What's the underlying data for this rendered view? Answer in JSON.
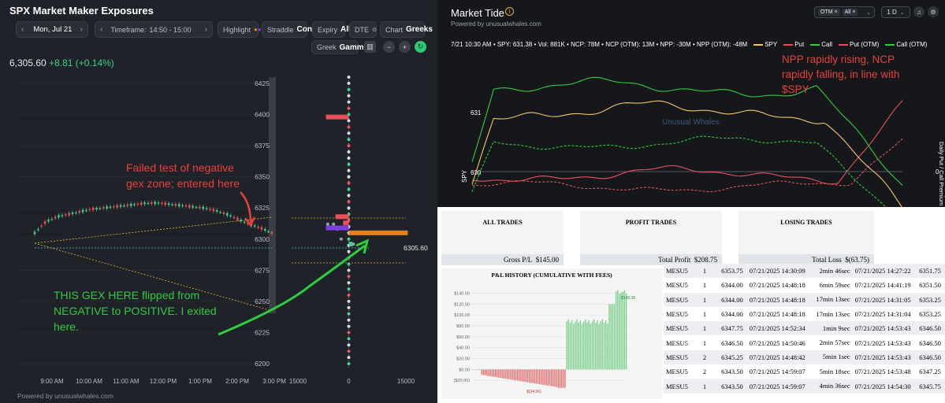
{
  "left_panel": {
    "title": "SPX Market Maker Exposures",
    "date": "Mon, Jul 21",
    "timeframe_label": "Timeframe:",
    "timeframe_value": "14:50 - 15:00",
    "highlight_label": "Highlight",
    "straddle_label": "Straddle",
    "straddle_value": "Cone",
    "expiry_label": "Expiry",
    "expiry_value": "All",
    "dte_label": "DTE",
    "chart_label": "Chart",
    "chart_value": "Greeks",
    "greek_label": "Greek",
    "greek_value": "Gamma",
    "price": "6,305.60",
    "change": "+8.81 (+0.14%)",
    "powered": "Powered by unusualwhales.com",
    "price_marker": "6305.60",
    "annotation_red": "Failed test of negative gex zone; entered here",
    "annotation_green": "THIS GEX HERE flipped from NEGATIVE to POSITIVE. I exited here.",
    "colors": {
      "up": "#3ecf8e",
      "down": "#e8505b",
      "annotation_red": "#e8413c",
      "annotation_green": "#2ecc40",
      "bar_orange": "#e67e22",
      "bar_purple": "#7b3fe4"
    }
  },
  "left_chart": {
    "type": "line",
    "x_ticks": [
      "9:00 AM",
      "10:00 AM",
      "11:00 AM",
      "12:00 PM",
      "1:00 PM",
      "2:00 PM",
      "3:00 PM"
    ],
    "y_ticks": [
      6425,
      6400,
      6375,
      6350,
      6325,
      6300,
      6275,
      6250,
      6225,
      6200
    ],
    "ylim": [
      6195,
      6430
    ],
    "price_points": [
      6305,
      6314,
      6318,
      6320,
      6322,
      6324,
      6325,
      6326,
      6327,
      6328,
      6329,
      6329,
      6328,
      6327,
      6326,
      6325,
      6323,
      6320,
      6316,
      6312,
      6309,
      6305
    ],
    "gex_x_ticks": [
      "15000",
      "0",
      "15000"
    ],
    "gex_xlim": [
      -15000,
      15000
    ],
    "gex_bars": [
      {
        "strike": 6398,
        "value": -6000,
        "color": "#e8505b"
      },
      {
        "strike": 6318,
        "value": -3500,
        "color": "#e8505b"
      },
      {
        "strike": 6313,
        "value": -1500,
        "color": "#e8505b"
      },
      {
        "strike": 6309,
        "value": -6000,
        "color": "#7b3fe4"
      },
      {
        "strike": 6305,
        "value": 15500,
        "color": "#e67e22"
      },
      {
        "strike": 6296,
        "value": 1000,
        "color": "#3ecf8e"
      }
    ]
  },
  "market_tide": {
    "title": "Market Tide",
    "powered": "Powered by unusualwhales.com",
    "filter_chips": [
      "OTM",
      "All"
    ],
    "range": "1 D",
    "summary": "7/21 10:30 AM • SPY: 631.38 • Vol: 881K • NCP: 78M • NCP (OTM): 13M • NPP: -30M • NPP (OTM): -48M",
    "legend": [
      {
        "name": "SPY",
        "color": "#f4c56a",
        "dashed": false
      },
      {
        "name": "Put",
        "color": "#e8505b",
        "dashed": false
      },
      {
        "name": "Call",
        "color": "#2ecc40",
        "dashed": false
      },
      {
        "name": "Put (OTM)",
        "color": "#e8505b",
        "dashed": true
      },
      {
        "name": "Call (OTM)",
        "color": "#2ecc40",
        "dashed": true
      }
    ],
    "y_label": "SPY",
    "y_ticks": [
      "631",
      "630"
    ],
    "right_label": "Daily Put / Call Premium",
    "right_tick": "0",
    "watermark": "Unusual Whales",
    "annotation": "NPP rapidly rising, NCP rapidly falling, in line with $SPY"
  },
  "report": {
    "all_trades": {
      "header": "ALL TRADES",
      "label": "Gross P/L",
      "value": "$145.00"
    },
    "profit_trades": {
      "header": "PROFIT TRADES",
      "label": "Total Profit",
      "value": "$208.75"
    },
    "losing_trades": {
      "header": "LOSING TRADES",
      "label": "Total Loss",
      "value": "$(63.75)"
    },
    "pnl_title": "P&L HISTORY (CUMULATIVE WITH FEES)",
    "pnl_chart": {
      "type": "bar",
      "y_ticks": [
        "$140.00",
        "$120.00",
        "$100.00",
        "$80.00",
        "$60.00",
        "$40.00",
        "$20.00",
        "$0.00",
        "($20.00)"
      ],
      "ylim": [
        -40,
        145
      ],
      "max_label": "$148.38",
      "min_label": "$(34.56)"
    },
    "trades": [
      {
        "symbol": "MESU5",
        "qty": "1",
        "entry": "6353.75",
        "entry_time": "07/21/2025 14:30:09",
        "duration": "2min 46sec",
        "exit_time": "07/21/2025 14:27:22",
        "exit": "6351.75"
      },
      {
        "symbol": "MESU5",
        "qty": "1",
        "entry": "6344.00",
        "entry_time": "07/21/2025 14:48:18",
        "duration": "6min 59sec",
        "exit_time": "07/21/2025 14:41:19",
        "exit": "6351.50"
      },
      {
        "symbol": "MESU5",
        "qty": "1",
        "entry": "6344.00",
        "entry_time": "07/21/2025 14:48:18",
        "duration": "17min 13sec",
        "exit_time": "07/21/2025 14:31:05",
        "exit": "6353.25"
      },
      {
        "symbol": "MESU5",
        "qty": "1",
        "entry": "6344.00",
        "entry_time": "07/21/2025 14:48:18",
        "duration": "17min 13sec",
        "exit_time": "07/21/2025 14:31:04",
        "exit": "6353.25"
      },
      {
        "symbol": "MESU5",
        "qty": "1",
        "entry": "6347.75",
        "entry_time": "07/21/2025 14:52:34",
        "duration": "1min 9sec",
        "exit_time": "07/21/2025 14:53:43",
        "exit": "6346.50"
      },
      {
        "symbol": "MESU5",
        "qty": "1",
        "entry": "6346.50",
        "entry_time": "07/21/2025 14:50:46",
        "duration": "2min 57sec",
        "exit_time": "07/21/2025 14:53:43",
        "exit": "6346.50"
      },
      {
        "symbol": "MESU5",
        "qty": "2",
        "entry": "6345.25",
        "entry_time": "07/21/2025 14:48:42",
        "duration": "5min 1sec",
        "exit_time": "07/21/2025 14:53:43",
        "exit": "6346.50"
      },
      {
        "symbol": "MESU5",
        "qty": "2",
        "entry": "6343.50",
        "entry_time": "07/21/2025 14:59:07",
        "duration": "5min 18sec",
        "exit_time": "07/21/2025 14:53:48",
        "exit": "6347.25"
      },
      {
        "symbol": "MESU5",
        "qty": "1",
        "entry": "6343.50",
        "entry_time": "07/21/2025 14:59:07",
        "duration": "4min 36sec",
        "exit_time": "07/21/2025 14:54:30",
        "exit": "6345.75"
      }
    ]
  }
}
